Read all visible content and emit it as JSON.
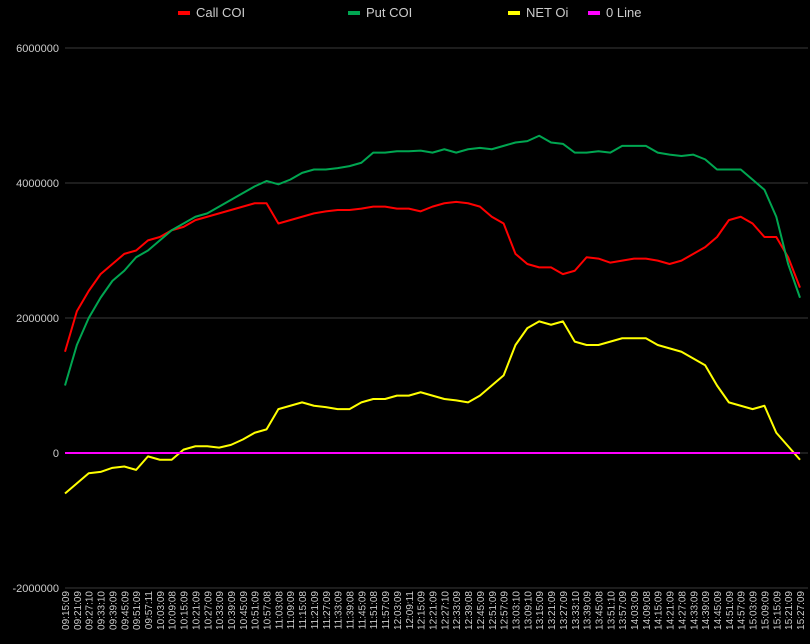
{
  "chart_data": {
    "type": "line",
    "categories": [
      "09:15:09",
      "09:21:09",
      "09:27:10",
      "09:33:10",
      "09:39:09",
      "09:45:09",
      "09:51:09",
      "09:57:11",
      "10:03:09",
      "10:09:08",
      "10:15:09",
      "10:21:09",
      "10:27:09",
      "10:33:09",
      "10:39:09",
      "10:45:09",
      "10:51:09",
      "10:57:08",
      "11:03:08",
      "11:09:09",
      "11:15:08",
      "11:21:09",
      "11:27:09",
      "11:33:09",
      "11:39:08",
      "11:45:09",
      "11:51:08",
      "11:57:09",
      "12:03:09",
      "12:09:11",
      "12:15:09",
      "12:21:09",
      "12:27:10",
      "12:33:09",
      "12:39:08",
      "12:45:09",
      "12:51:09",
      "12:57:09",
      "13:03:10",
      "13:09:10",
      "13:15:09",
      "13:21:09",
      "13:27:09",
      "13:33:10",
      "13:39:09",
      "13:45:08",
      "13:51:10",
      "13:57:09",
      "14:03:09",
      "14:09:08",
      "14:15:09",
      "14:21:09",
      "14:27:08",
      "14:33:09",
      "14:39:09",
      "14:45:09",
      "14:51:09",
      "14:57:09",
      "15:03:09",
      "15:09:09",
      "15:15:09",
      "15:21:09",
      "15:27:09"
    ],
    "series": [
      {
        "name": "Call COI",
        "color": "#ff0000",
        "values": [
          1500000,
          2100000,
          2400000,
          2650000,
          2800000,
          2950000,
          3000000,
          3150000,
          3200000,
          3300000,
          3350000,
          3450000,
          3500000,
          3550000,
          3600000,
          3650000,
          3700000,
          3700000,
          3400000,
          3450000,
          3500000,
          3550000,
          3580000,
          3600000,
          3600000,
          3620000,
          3650000,
          3650000,
          3620000,
          3620000,
          3580000,
          3650000,
          3700000,
          3720000,
          3700000,
          3650000,
          3500000,
          3400000,
          2950000,
          2800000,
          2750000,
          2750000,
          2650000,
          2700000,
          2900000,
          2880000,
          2820000,
          2850000,
          2880000,
          2880000,
          2850000,
          2800000,
          2850000,
          2950000,
          3050000,
          3200000,
          3450000,
          3500000,
          3400000,
          3200000,
          3200000,
          2900000,
          2450000
        ]
      },
      {
        "name": "Put COI",
        "color": "#00a651",
        "values": [
          1000000,
          1600000,
          2000000,
          2300000,
          2550000,
          2700000,
          2900000,
          3000000,
          3150000,
          3300000,
          3400000,
          3500000,
          3550000,
          3650000,
          3750000,
          3850000,
          3950000,
          4030000,
          3980000,
          4050000,
          4150000,
          4200000,
          4200000,
          4220000,
          4250000,
          4300000,
          4450000,
          4450000,
          4470000,
          4470000,
          4480000,
          4450000,
          4500000,
          4450000,
          4500000,
          4520000,
          4500000,
          4550000,
          4600000,
          4620000,
          4700000,
          4600000,
          4580000,
          4450000,
          4450000,
          4470000,
          4450000,
          4550000,
          4550000,
          4550000,
          4450000,
          4420000,
          4400000,
          4420000,
          4350000,
          4200000,
          4200000,
          4200000,
          4050000,
          3900000,
          3500000,
          2800000,
          2300000
        ]
      },
      {
        "name": "NET Oi",
        "color": "#ffff00",
        "values": [
          -600000,
          -450000,
          -300000,
          -280000,
          -220000,
          -200000,
          -250000,
          -50000,
          -100000,
          -100000,
          50000,
          100000,
          100000,
          80000,
          120000,
          200000,
          300000,
          350000,
          650000,
          700000,
          750000,
          700000,
          680000,
          650000,
          650000,
          750000,
          800000,
          800000,
          850000,
          850000,
          900000,
          850000,
          800000,
          780000,
          750000,
          850000,
          1000000,
          1150000,
          1600000,
          1850000,
          1950000,
          1900000,
          1950000,
          1650000,
          1600000,
          1600000,
          1650000,
          1700000,
          1700000,
          1700000,
          1600000,
          1550000,
          1500000,
          1400000,
          1300000,
          1000000,
          750000,
          700000,
          650000,
          700000,
          300000,
          100000,
          -100000
        ]
      },
      {
        "name": "0 Line",
        "color": "#ff00ff",
        "values": [
          0,
          0,
          0,
          0,
          0,
          0,
          0,
          0,
          0,
          0,
          0,
          0,
          0,
          0,
          0,
          0,
          0,
          0,
          0,
          0,
          0,
          0,
          0,
          0,
          0,
          0,
          0,
          0,
          0,
          0,
          0,
          0,
          0,
          0,
          0,
          0,
          0,
          0,
          0,
          0,
          0,
          0,
          0,
          0,
          0,
          0,
          0,
          0,
          0,
          0,
          0,
          0,
          0,
          0,
          0,
          0,
          0,
          0,
          0,
          0,
          0,
          0,
          0
        ]
      }
    ],
    "ylim": [
      -2000000,
      6000000
    ],
    "yticks": [
      -2000000,
      0,
      2000000,
      4000000,
      6000000
    ],
    "grid": true,
    "legend": "top"
  }
}
